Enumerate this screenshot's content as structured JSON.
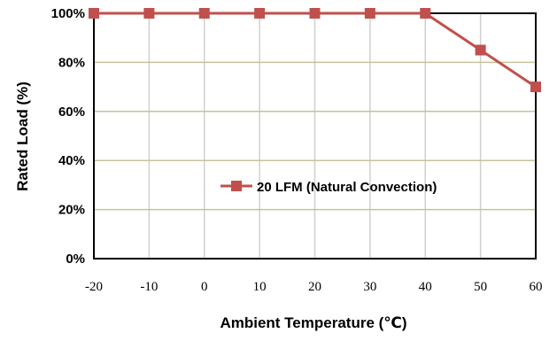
{
  "chart_data": {
    "type": "line",
    "title": "",
    "xlabel": "Ambient Temperature (℃)",
    "ylabel": "Rated Load (%)",
    "x": [
      -20,
      -10,
      0,
      10,
      20,
      30,
      40,
      50,
      60
    ],
    "x_tick_labels": [
      "-20",
      "-10",
      "0",
      "10",
      "20",
      "30",
      "40",
      "50",
      "60"
    ],
    "y_tick_labels": [
      "0%",
      "20%",
      "40%",
      "60%",
      "80%",
      "100%"
    ],
    "y_ticks": [
      0,
      20,
      40,
      60,
      80,
      100
    ],
    "xlim": [
      -20,
      60
    ],
    "ylim": [
      0,
      100
    ],
    "grid": true,
    "legend_position": "center-right",
    "series": [
      {
        "name": "20 LFM (Natural Convection)",
        "values": [
          100,
          100,
          100,
          100,
          100,
          100,
          100,
          85,
          70
        ],
        "color": "#c0504d",
        "marker": "square"
      }
    ],
    "colors": {
      "major_grid": "#c9c199",
      "minor_grid": "#d0d0d0",
      "axis": "#000000"
    }
  }
}
